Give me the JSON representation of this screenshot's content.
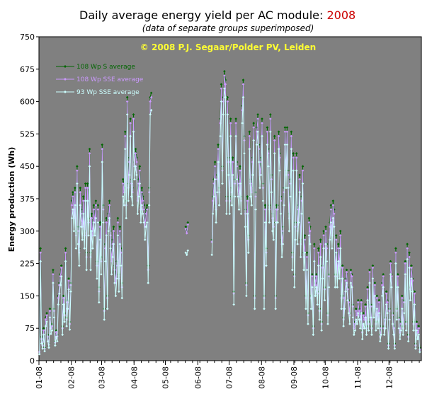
{
  "chart_data": {
    "type": "line",
    "title": "Daily average energy yield per AC module: ",
    "title_year": "2008",
    "subtitle": "(data of separate groups superimposed)",
    "annotation": "© 2008 P.J. Segaar/Polder PV, Leiden",
    "ylabel": "Energy production (Wh)",
    "xlabel": "",
    "ylim": [
      0,
      750
    ],
    "yticks": [
      "0",
      "75",
      "150",
      "225",
      "300",
      "375",
      "450",
      "525",
      "600",
      "675",
      "750"
    ],
    "xlim_days": [
      0,
      366
    ],
    "xtick_labels": [
      "01-08",
      "02-08",
      "03-08",
      "04-08",
      "05-08",
      "06-08",
      "07-08",
      "08-08",
      "09-08",
      "10-08",
      "11-08",
      "12-08"
    ],
    "grid": false,
    "legend_position": "top-left",
    "plot_background": "#808080",
    "series": [
      {
        "name": "108 Wp S average",
        "color": "#006600",
        "offset": 0.0,
        "values": [
          20,
          260,
          55,
          40,
          75,
          30,
          100,
          110,
          60,
          40,
          120,
          80,
          85,
          210,
          120,
          45,
          70,
          60,
          150,
          180,
          200,
          220,
          80,
          150,
          110,
          260,
          100,
          140,
          190,
          90,
          180,
          370,
          390,
          340,
          400,
          300,
          450,
          310,
          260,
          400,
          350,
          320,
          380,
          300,
          410,
          250,
          410,
          330,
          490,
          250,
          340,
          300,
          360,
          330,
          370,
          230,
          360,
          170,
          320,
          240,
          500,
          360,
          120,
          270,
          330,
          150,
          340,
          370,
          300,
          240,
          280,
          310,
          220,
          190,
          230,
          330,
          200,
          310,
          260,
          180,
          420,
          400,
          530,
          370,
          610,
          410,
          470,
          560,
          420,
          400,
          570,
          460,
          490,
          470,
          380,
          420,
          450,
          360,
          400,
          380,
          360,
          320,
          350,
          360,
          220,
          400,
          610,
          620,
          null,
          null,
          null,
          null,
          null,
          null,
          null,
          null,
          null,
          null,
          null,
          null,
          null,
          null,
          null,
          null,
          null,
          null,
          null,
          null,
          null,
          null,
          null,
          null,
          null,
          null,
          null,
          null,
          null,
          null,
          null,
          null,
          310,
          300,
          320,
          null,
          null,
          null,
          null,
          null,
          null,
          null,
          null,
          null,
          null,
          null,
          null,
          null,
          null,
          null,
          null,
          null,
          null,
          null,
          null,
          null,
          null,
          280,
          380,
          420,
          460,
          360,
          430,
          500,
          400,
          560,
          640,
          450,
          610,
          670,
          650,
          380,
          610,
          470,
          380,
          560,
          400,
          470,
          160,
          420,
          560,
          460,
          420,
          390,
          450,
          380,
          590,
          650,
          520,
          350,
          180,
          380,
          290,
          530,
          420,
          400,
          470,
          550,
          150,
          390,
          540,
          570,
          500,
          440,
          470,
          560,
          410,
          150,
          360,
          260,
          540,
          490,
          360,
          570,
          430,
          340,
          320,
          520,
          150,
          360,
          360,
          530,
          480,
          380,
          280,
          310,
          400,
          540,
          440,
          540,
          440,
          340,
          420,
          530,
          250,
          480,
          200,
          320,
          480,
          310,
          360,
          430,
          280,
          380,
          450,
          250,
          290,
          150,
          250,
          110,
          330,
          310,
          150,
          200,
          80,
          270,
          180,
          200,
          160,
          260,
          120,
          280,
          90,
          220,
          300,
          170,
          310,
          270,
          110,
          200,
          320,
          360,
          300,
          370,
          350,
          200,
          290,
          200,
          270,
          230,
          300,
          150,
          220,
          100,
          150,
          190,
          210,
          170,
          140,
          110,
          210,
          200,
          130,
          80,
          90,
          120,
          110,
          140,
          120,
          100,
          140,
          70,
          110,
          100,
          130,
          80,
          170,
          90,
          210,
          130,
          80,
          220,
          130,
          180,
          90,
          150,
          100,
          140,
          60,
          80,
          180,
          200,
          80,
          100,
          160,
          140,
          40,
          120,
          230,
          200,
          110,
          80,
          40,
          260,
          120,
          200,
          100,
          70,
          90,
          150,
          80,
          140,
          230,
          90,
          270,
          60,
          250,
          170,
          220,
          190,
          90,
          160,
          40,
          90,
          70,
          80,
          30
        ]
      },
      {
        "name": "108 Wp SSE average",
        "color": "#cc99ff",
        "offset": -8.0,
        "values": [
          20,
          250,
          50,
          35,
          70,
          28,
          95,
          105,
          55,
          38,
          115,
          75,
          80,
          200,
          115,
          42,
          66,
          56,
          145,
          175,
          195,
          215,
          75,
          145,
          105,
          250,
          95,
          135,
          185,
          85,
          175,
          360,
          380,
          330,
          390,
          290,
          440,
          300,
          250,
          390,
          340,
          310,
          370,
          290,
          400,
          240,
          400,
          320,
          480,
          240,
          330,
          290,
          350,
          320,
          360,
          220,
          350,
          160,
          310,
          230,
          490,
          350,
          115,
          260,
          320,
          145,
          330,
          360,
          290,
          230,
          270,
          300,
          210,
          180,
          220,
          320,
          190,
          300,
          250,
          170,
          410,
          390,
          520,
          360,
          600,
          400,
          460,
          550,
          410,
          390,
          560,
          450,
          480,
          460,
          370,
          410,
          440,
          350,
          390,
          370,
          350,
          310,
          340,
          350,
          210,
          390,
          600,
          610,
          null,
          null,
          null,
          null,
          null,
          null,
          null,
          null,
          null,
          null,
          null,
          null,
          null,
          null,
          null,
          null,
          null,
          null,
          null,
          null,
          null,
          null,
          null,
          null,
          null,
          null,
          null,
          null,
          null,
          null,
          null,
          null,
          305,
          295,
          315,
          null,
          null,
          null,
          null,
          null,
          null,
          null,
          null,
          null,
          null,
          null,
          null,
          null,
          null,
          null,
          null,
          null,
          null,
          null,
          null,
          null,
          null,
          275,
          370,
          410,
          450,
          350,
          420,
          490,
          390,
          550,
          630,
          440,
          600,
          660,
          640,
          370,
          600,
          460,
          370,
          550,
          390,
          460,
          155,
          410,
          550,
          450,
          410,
          380,
          440,
          370,
          580,
          640,
          510,
          340,
          175,
          370,
          280,
          520,
          410,
          390,
          460,
          540,
          145,
          380,
          530,
          560,
          490,
          430,
          460,
          550,
          400,
          145,
          350,
          250,
          530,
          480,
          350,
          560,
          420,
          330,
          310,
          510,
          145,
          350,
          350,
          520,
          470,
          370,
          270,
          300,
          390,
          530,
          430,
          530,
          430,
          330,
          410,
          520,
          240,
          470,
          195,
          310,
          470,
          300,
          350,
          420,
          270,
          370,
          440,
          240,
          280,
          145,
          240,
          105,
          320,
          300,
          145,
          195,
          75,
          260,
          175,
          195,
          155,
          250,
          115,
          270,
          85,
          215,
          290,
          165,
          300,
          260,
          105,
          195,
          310,
          350,
          290,
          360,
          340,
          195,
          280,
          195,
          260,
          220,
          290,
          145,
          215,
          95,
          145,
          185,
          205,
          165,
          135,
          105,
          205,
          195,
          125,
          75,
          85,
          115,
          105,
          135,
          115,
          95,
          135,
          65,
          105,
          95,
          125,
          75,
          165,
          85,
          205,
          125,
          75,
          215,
          125,
          175,
          85,
          145,
          95,
          135,
          55,
          75,
          175,
          195,
          75,
          95,
          155,
          135,
          35,
          115,
          225,
          195,
          105,
          75,
          35,
          250,
          115,
          195,
          95,
          65,
          85,
          145,
          75,
          135,
          225,
          85,
          260,
          55,
          240,
          165,
          215,
          185,
          85,
          155,
          35,
          85,
          65,
          75,
          25
        ]
      },
      {
        "name": "93 Wp SSE average",
        "color": "#ccffff",
        "offset": -30.0,
        "values": [
          15,
          230,
          40,
          28,
          60,
          22,
          80,
          90,
          45,
          30,
          100,
          62,
          70,
          180,
          100,
          35,
          55,
          45,
          130,
          155,
          175,
          195,
          60,
          130,
          90,
          230,
          80,
          120,
          165,
          72,
          160,
          330,
          350,
          300,
          360,
          260,
          410,
          270,
          220,
          360,
          310,
          280,
          340,
          260,
          370,
          210,
          370,
          290,
          450,
          210,
          300,
          260,
          320,
          290,
          330,
          190,
          320,
          135,
          280,
          200,
          460,
          320,
          95,
          230,
          290,
          120,
          300,
          330,
          260,
          200,
          240,
          270,
          180,
          150,
          190,
          290,
          160,
          270,
          220,
          145,
          380,
          360,
          490,
          330,
          570,
          370,
          430,
          520,
          380,
          360,
          530,
          420,
          450,
          430,
          340,
          380,
          410,
          320,
          360,
          340,
          320,
          280,
          310,
          320,
          180,
          360,
          570,
          580,
          null,
          null,
          null,
          null,
          null,
          null,
          null,
          null,
          null,
          null,
          null,
          null,
          null,
          null,
          null,
          null,
          null,
          null,
          null,
          null,
          null,
          null,
          null,
          null,
          null,
          null,
          null,
          null,
          null,
          null,
          null,
          null,
          250,
          245,
          255,
          null,
          null,
          null,
          null,
          null,
          null,
          null,
          null,
          null,
          null,
          null,
          null,
          null,
          null,
          null,
          null,
          null,
          null,
          null,
          null,
          null,
          null,
          245,
          340,
          380,
          420,
          320,
          390,
          460,
          360,
          520,
          600,
          410,
          570,
          630,
          610,
          340,
          570,
          430,
          340,
          520,
          360,
          430,
          130,
          380,
          520,
          420,
          380,
          350,
          410,
          340,
          550,
          610,
          480,
          310,
          150,
          340,
          250,
          490,
          380,
          360,
          430,
          510,
          120,
          350,
          500,
          530,
          460,
          400,
          430,
          520,
          370,
          120,
          320,
          220,
          500,
          450,
          320,
          530,
          390,
          300,
          280,
          480,
          120,
          320,
          320,
          490,
          440,
          340,
          240,
          270,
          360,
          500,
          400,
          500,
          400,
          300,
          380,
          490,
          210,
          440,
          170,
          280,
          440,
          270,
          320,
          390,
          240,
          340,
          410,
          210,
          250,
          120,
          210,
          85,
          290,
          270,
          120,
          170,
          60,
          230,
          150,
          170,
          130,
          220,
          95,
          240,
          70,
          190,
          260,
          140,
          270,
          230,
          85,
          170,
          280,
          320,
          260,
          330,
          310,
          170,
          250,
          170,
          230,
          190,
          260,
          120,
          190,
          80,
          120,
          160,
          180,
          140,
          110,
          85,
          180,
          170,
          100,
          60,
          70,
          95,
          85,
          110,
          95,
          75,
          110,
          50,
          85,
          75,
          100,
          60,
          140,
          70,
          180,
          100,
          60,
          190,
          100,
          150,
          70,
          120,
          75,
          110,
          45,
          60,
          150,
          170,
          60,
          75,
          130,
          110,
          28,
          95,
          200,
          170,
          85,
          60,
          28,
          225,
          95,
          170,
          75,
          50,
          70,
          120,
          60,
          110,
          200,
          70,
          235,
          45,
          215,
          140,
          190,
          160,
          70,
          130,
          28,
          70,
          50,
          60,
          20
        ]
      }
    ]
  }
}
